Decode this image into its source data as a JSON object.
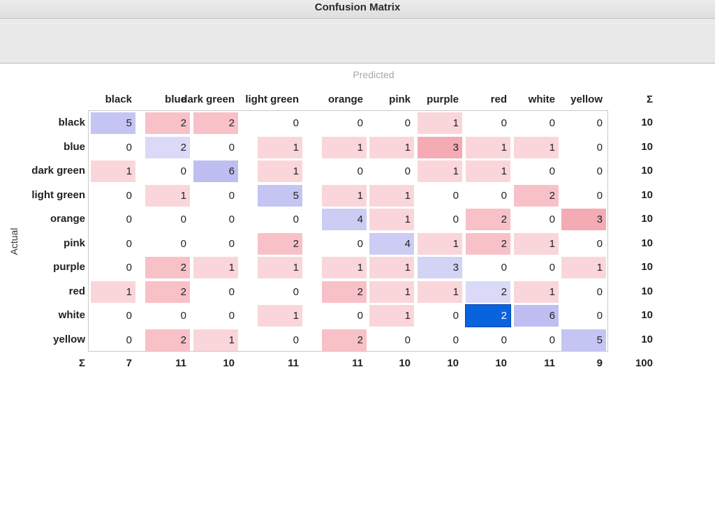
{
  "window": {
    "title": "Confusion Matrix"
  },
  "axis": {
    "predicted_label": "Predicted",
    "actual_label": "Actual"
  },
  "colors": {
    "selected": "#0a63de",
    "diagonal": "#d3d3f6",
    "off_diagonal": "#f9c6ca"
  },
  "classes": [
    "black",
    "blue",
    "dark green",
    "light green",
    "orange",
    "pink",
    "purple",
    "red",
    "white",
    "yellow"
  ],
  "sum_symbol": "Σ",
  "matrix": [
    [
      5,
      2,
      2,
      0,
      0,
      0,
      1,
      0,
      0,
      0
    ],
    [
      0,
      2,
      0,
      1,
      1,
      1,
      3,
      1,
      1,
      0
    ],
    [
      1,
      0,
      6,
      1,
      0,
      0,
      1,
      1,
      0,
      0
    ],
    [
      0,
      1,
      0,
      5,
      1,
      1,
      0,
      0,
      2,
      0
    ],
    [
      0,
      0,
      0,
      0,
      4,
      1,
      0,
      2,
      0,
      3
    ],
    [
      0,
      0,
      0,
      2,
      0,
      4,
      1,
      2,
      1,
      0
    ],
    [
      0,
      2,
      1,
      1,
      1,
      1,
      3,
      0,
      0,
      1
    ],
    [
      1,
      2,
      0,
      0,
      2,
      1,
      1,
      2,
      1,
      0
    ],
    [
      0,
      0,
      0,
      1,
      0,
      1,
      0,
      2,
      6,
      0
    ],
    [
      0,
      2,
      1,
      0,
      2,
      0,
      0,
      0,
      0,
      5
    ]
  ],
  "row_sums": [
    10,
    10,
    10,
    10,
    10,
    10,
    10,
    10,
    10,
    10
  ],
  "col_sums": [
    7,
    11,
    10,
    11,
    11,
    10,
    10,
    10,
    11,
    9
  ],
  "total": 100,
  "selected_cell": {
    "row": "white",
    "col": "red"
  }
}
